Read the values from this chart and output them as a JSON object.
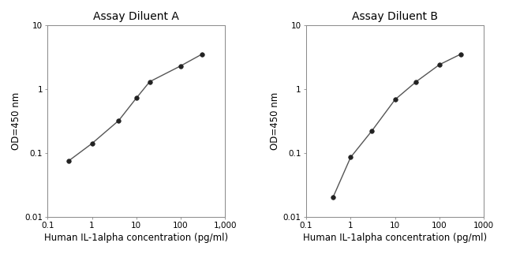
{
  "chart_A": {
    "title": "Assay Diluent A",
    "x": [
      0.3,
      1,
      4,
      10,
      20,
      100,
      300
    ],
    "y": [
      0.075,
      0.14,
      0.32,
      0.72,
      1.3,
      2.3,
      3.5
    ],
    "xlim": [
      0.1,
      1000
    ],
    "ylim": [
      0.01,
      10
    ],
    "xticks": [
      0.1,
      1,
      10,
      100,
      1000
    ],
    "xtick_labels": [
      "0.1",
      "1",
      "10",
      "100",
      "1,000"
    ],
    "yticks": [
      0.01,
      0.1,
      1,
      10
    ],
    "ytick_labels": [
      "0.01",
      "0.1",
      "1",
      "10"
    ],
    "xlabel": "Human IL-1alpha concentration (pg/ml)",
    "ylabel": "OD=450 nm"
  },
  "chart_B": {
    "title": "Assay Diluent B",
    "x": [
      0.4,
      1,
      3,
      10,
      30,
      100,
      300
    ],
    "y": [
      0.02,
      0.085,
      0.22,
      0.68,
      1.3,
      2.4,
      3.5
    ],
    "xlim": [
      0.1,
      1000
    ],
    "ylim": [
      0.01,
      10
    ],
    "xticks": [
      0.1,
      1,
      10,
      100,
      1000
    ],
    "xtick_labels": [
      "0.1",
      "1",
      "10",
      "100",
      "1000"
    ],
    "yticks": [
      0.01,
      0.1,
      1,
      10
    ],
    "ytick_labels": [
      "0.01",
      "0.1",
      "1",
      "10"
    ],
    "xlabel": "Human IL-1alpha concentration (pg/ml)",
    "ylabel": "OD=450 nm"
  },
  "line_color": "#555555",
  "marker_color": "#222222",
  "bg_color": "#ffffff",
  "title_fontsize": 10,
  "label_fontsize": 8.5,
  "tick_fontsize": 7.5
}
